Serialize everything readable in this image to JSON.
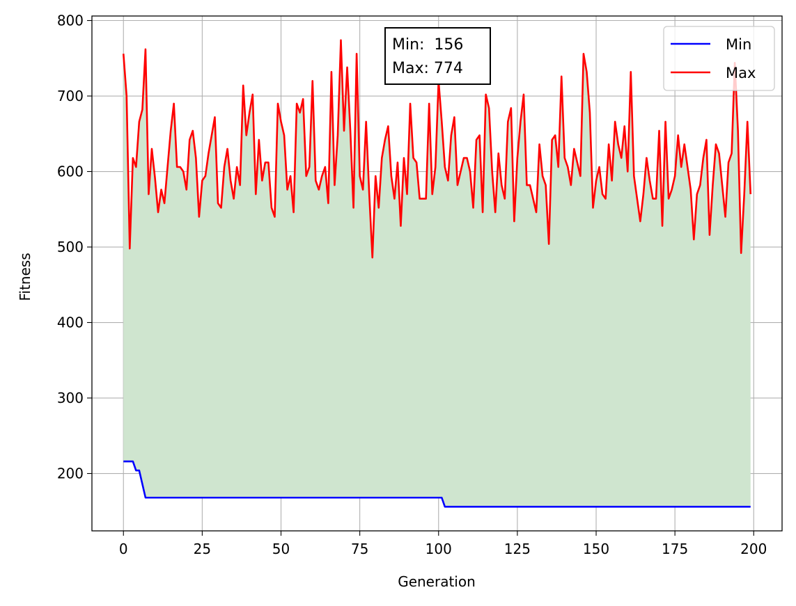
{
  "chart_data": {
    "type": "line",
    "title": "",
    "xlabel": "Generation",
    "ylabel": "Fitness",
    "xlim": [
      -10,
      209
    ],
    "ylim": [
      124,
      806
    ],
    "xticks": [
      0,
      25,
      50,
      75,
      100,
      125,
      150,
      175,
      200
    ],
    "yticks": [
      200,
      300,
      400,
      500,
      600,
      700,
      800
    ],
    "grid": true,
    "legend_position": "top-right",
    "annotation": {
      "min_line": "Min:  156",
      "max_line": "Max: 774"
    },
    "fill": {
      "between": [
        "Min",
        "Max"
      ],
      "color": "#cfe5cf"
    },
    "series": [
      {
        "name": "Min",
        "color": "#0000ff",
        "x": [
          0,
          3,
          4,
          5,
          7,
          100,
          101,
          102,
          199
        ],
        "y": [
          216,
          216,
          204,
          204,
          168,
          168,
          168,
          156,
          156
        ]
      },
      {
        "name": "Max",
        "color": "#ff0000",
        "y": [
          756,
          700,
          498,
          618,
          606,
          666,
          682,
          762,
          570,
          630,
          592,
          546,
          576,
          558,
          606,
          654,
          690,
          606,
          606,
          600,
          576,
          642,
          654,
          618,
          540,
          588,
          594,
          624,
          648,
          672,
          558,
          552,
          606,
          630,
          588,
          564,
          606,
          582,
          714,
          648,
          678,
          702,
          570,
          642,
          588,
          612,
          612,
          552,
          540,
          690,
          666,
          648,
          576,
          594,
          546,
          690,
          678,
          696,
          594,
          606,
          720,
          588,
          576,
          594,
          606,
          558,
          732,
          582,
          648,
          774,
          654,
          738,
          654,
          552,
          756,
          594,
          576,
          666,
          570,
          486,
          594,
          552,
          618,
          642,
          660,
          594,
          564,
          612,
          528,
          618,
          570,
          690,
          618,
          612,
          564,
          564,
          564,
          690,
          570,
          606,
          720,
          666,
          606,
          588,
          648,
          672,
          582,
          600,
          618,
          618,
          600,
          552,
          642,
          648,
          546,
          702,
          684,
          600,
          546,
          624,
          582,
          564,
          666,
          684,
          534,
          618,
          666,
          702,
          582,
          582,
          564,
          546,
          636,
          594,
          582,
          504,
          642,
          648,
          606,
          726,
          618,
          606,
          582,
          630,
          612,
          594,
          756,
          732,
          678,
          552,
          588,
          606,
          570,
          564,
          636,
          588,
          666,
          636,
          618,
          660,
          600,
          732,
          594,
          564,
          534,
          570,
          618,
          588,
          564,
          564,
          654,
          528,
          666,
          564,
          576,
          594,
          648,
          606,
          636,
          606,
          576,
          510,
          570,
          582,
          618,
          642,
          516,
          582,
          636,
          624,
          582,
          540,
          612,
          624,
          744,
          654,
          492,
          570,
          666,
          570
        ]
      }
    ]
  }
}
